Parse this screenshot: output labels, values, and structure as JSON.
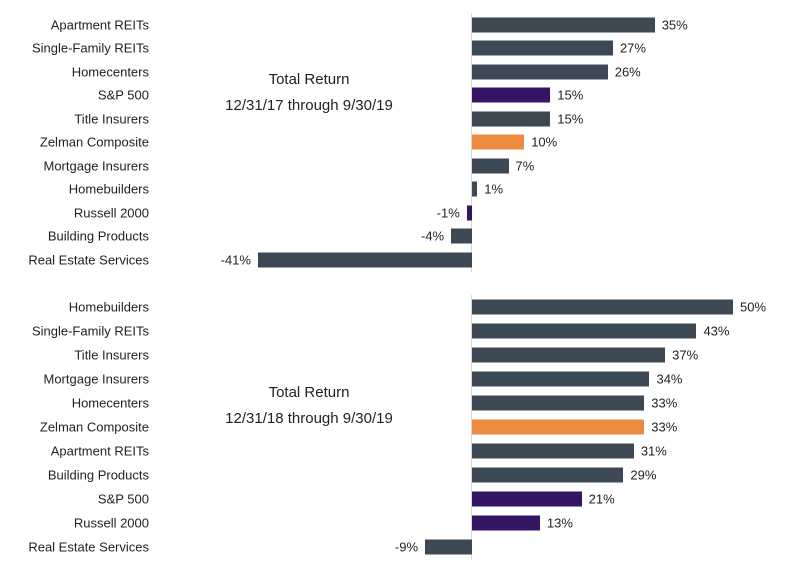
{
  "palette": {
    "slate": "#3C4854",
    "purple": "#331563",
    "orange": "#EC8B3F",
    "axis_gray": "#D9D9D9",
    "text": "#222222"
  },
  "chart_data": [
    {
      "type": "bar",
      "orientation": "horizontal",
      "title": "Total Return",
      "subtitle": "12/31/17 through 9/30/19",
      "categories": [
        "Apartment REITs",
        "Single-Family REITs",
        "Homecenters",
        "S&P 500",
        "Title Insurers",
        "Zelman Composite",
        "Mortgage Insurers",
        "Homebuilders",
        "Russell 2000",
        "Building Products",
        "Real Estate Services"
      ],
      "values": [
        35,
        27,
        26,
        15,
        15,
        10,
        7,
        1,
        -1,
        -4,
        -41
      ],
      "value_labels": [
        "35%",
        "27%",
        "26%",
        "15%",
        "15%",
        "10%",
        "7%",
        "1%",
        "-1%",
        "-4%",
        "-41%"
      ],
      "bar_colors": [
        "slate",
        "slate",
        "slate",
        "purple",
        "slate",
        "orange",
        "slate",
        "slate",
        "purple",
        "slate",
        "slate"
      ],
      "xlim": [
        -45,
        60
      ],
      "grid": false,
      "legend": false,
      "value_axis_visible": false,
      "zero_baseline": true
    },
    {
      "type": "bar",
      "orientation": "horizontal",
      "title": "Total Return",
      "subtitle": "12/31/18 through 9/30/19",
      "categories": [
        "Homebuilders",
        "Single-Family REITs",
        "Title Insurers",
        "Mortgage Insurers",
        "Homecenters",
        "Zelman Composite",
        "Apartment REITs",
        "Building Products",
        "S&P 500",
        "Russell 2000",
        "Real Estate Services"
      ],
      "values": [
        50,
        43,
        37,
        34,
        33,
        33,
        31,
        29,
        21,
        13,
        -9
      ],
      "value_labels": [
        "50%",
        "43%",
        "37%",
        "34%",
        "33%",
        "33%",
        "31%",
        "29%",
        "21%",
        "13%",
        "-9%"
      ],
      "bar_colors": [
        "slate",
        "slate",
        "slate",
        "slate",
        "slate",
        "orange",
        "slate",
        "slate",
        "purple",
        "purple",
        "slate"
      ],
      "xlim": [
        -45,
        60
      ],
      "grid": false,
      "legend": false,
      "value_axis_visible": false,
      "zero_baseline": true
    }
  ]
}
